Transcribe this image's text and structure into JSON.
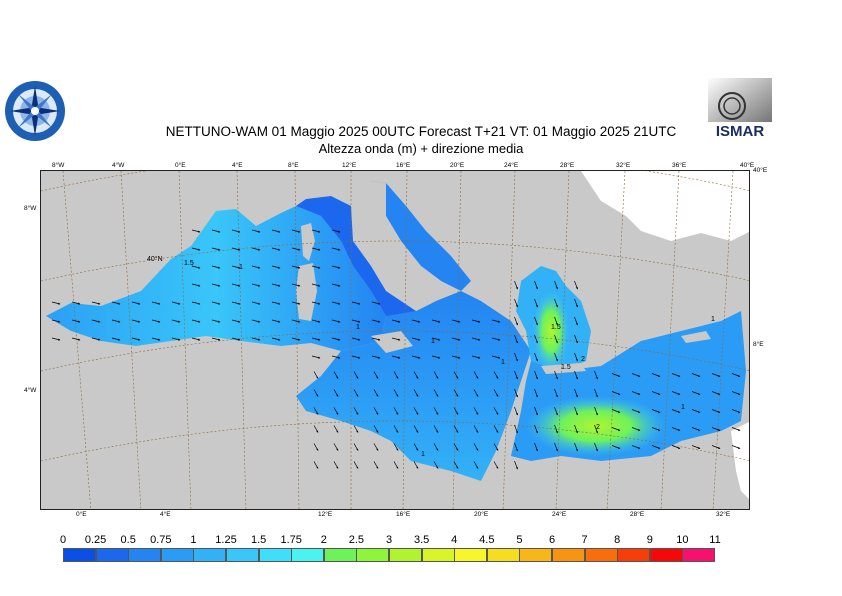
{
  "title": "NETTUNO-WAM  01   Maggio  2025 00UTC Forecast T+21 VT: 01   Maggio  2025 21UTC",
  "subtitle": "Altezza onda (m) + direzione media",
  "logo_right_text": "ISMAR",
  "top_lon_ticks": [
    "8°W",
    "4°W",
    "0°E",
    "4°E",
    "8°E",
    "12°E",
    "16°E",
    "20°E",
    "24°E",
    "28°E",
    "32°E",
    "36°E",
    "40°E"
  ],
  "bottom_lon_ticks": [
    "0°E",
    "4°E",
    "12°E",
    "16°E",
    "20°E",
    "24°E",
    "28°E",
    "32°E"
  ],
  "left_lat_ticks": [
    "8°W",
    "4°W"
  ],
  "right_lat_ticks": [
    "40°E",
    "8°E"
  ],
  "interior_labels": [
    "40°N"
  ],
  "contour_labels": [
    "1.5",
    "1",
    "1",
    "1",
    "1",
    "1.5",
    "2",
    "1.5",
    "2",
    "1",
    "1",
    "1"
  ],
  "legend": {
    "values": [
      "0",
      "0.25",
      "0.5",
      "0.75",
      "1",
      "1.25",
      "1.5",
      "1.75",
      "2",
      "2.5",
      "3",
      "3.5",
      "4",
      "4.5",
      "5",
      "6",
      "7",
      "8",
      "9",
      "10",
      "11"
    ],
    "colors": [
      "#0a4fe6",
      "#1b68ee",
      "#2384f2",
      "#2b9cf5",
      "#33b1f7",
      "#39c6f9",
      "#3fdefa",
      "#4af3f0",
      "#6ef25a",
      "#8ef53a",
      "#b0f430",
      "#d9f52a",
      "#f6f62a",
      "#f7dd20",
      "#f7b718",
      "#f79510",
      "#f76e0a",
      "#f73e08",
      "#f70808",
      "#f7106e",
      "#f520c8"
    ]
  }
}
